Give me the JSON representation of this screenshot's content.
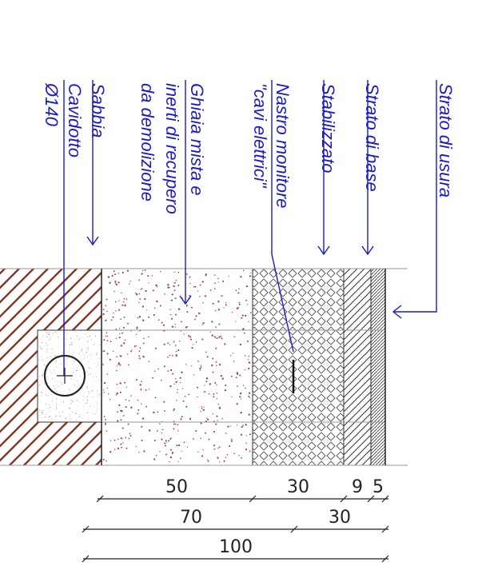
{
  "colors": {
    "label": "#1a1acc",
    "earth_hatch": "#7a3a2a",
    "gravel_dots": "#a04040",
    "line": "#222222",
    "border": "#999999"
  },
  "labels": {
    "strato_usura": "Strato di usura",
    "strato_base": "Strato di base",
    "stabilizzato": "Stabilizzato",
    "nastro_1": "Nastro monitore",
    "nastro_2": "\"cavi elettrici\"",
    "ghiaia_1": "Ghiaia mista e",
    "ghiaia_2": "inerti di recupero",
    "ghiaia_3": "da demolizione",
    "sabbia": "Sabbia",
    "cavidotto_1": "Cavidotto",
    "cavidotto_2": "Ø140"
  },
  "dimensions": {
    "row1": [
      "50",
      "30",
      "9",
      "5"
    ],
    "row2": [
      "70",
      "30"
    ],
    "row3": [
      "100"
    ]
  }
}
